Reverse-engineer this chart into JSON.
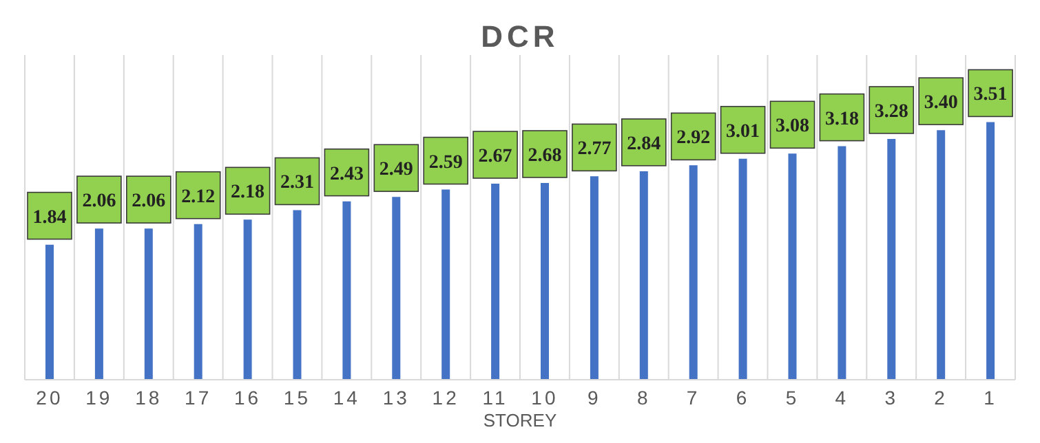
{
  "chart_data": {
    "type": "bar",
    "title": "DCR",
    "xlabel": "STOREY",
    "categories": [
      "20",
      "19",
      "18",
      "17",
      "16",
      "15",
      "14",
      "13",
      "12",
      "11",
      "10",
      "9",
      "8",
      "7",
      "6",
      "5",
      "4",
      "3",
      "2",
      "1"
    ],
    "values": [
      1.84,
      2.06,
      2.06,
      2.12,
      2.18,
      2.31,
      2.43,
      2.49,
      2.59,
      2.67,
      2.68,
      2.77,
      2.84,
      2.92,
      3.01,
      3.08,
      3.18,
      3.28,
      3.4,
      3.51
    ],
    "value_labels": [
      "1.84",
      "2.06",
      "2.06",
      "2.12",
      "2.18",
      "2.31",
      "2.43",
      "2.49",
      "2.59",
      "2.67",
      "2.68",
      "2.77",
      "2.84",
      "2.92",
      "3.01",
      "3.08",
      "3.18",
      "3.28",
      "3.40",
      "3.51"
    ],
    "color": "#4472c4",
    "grid": "x"
  }
}
